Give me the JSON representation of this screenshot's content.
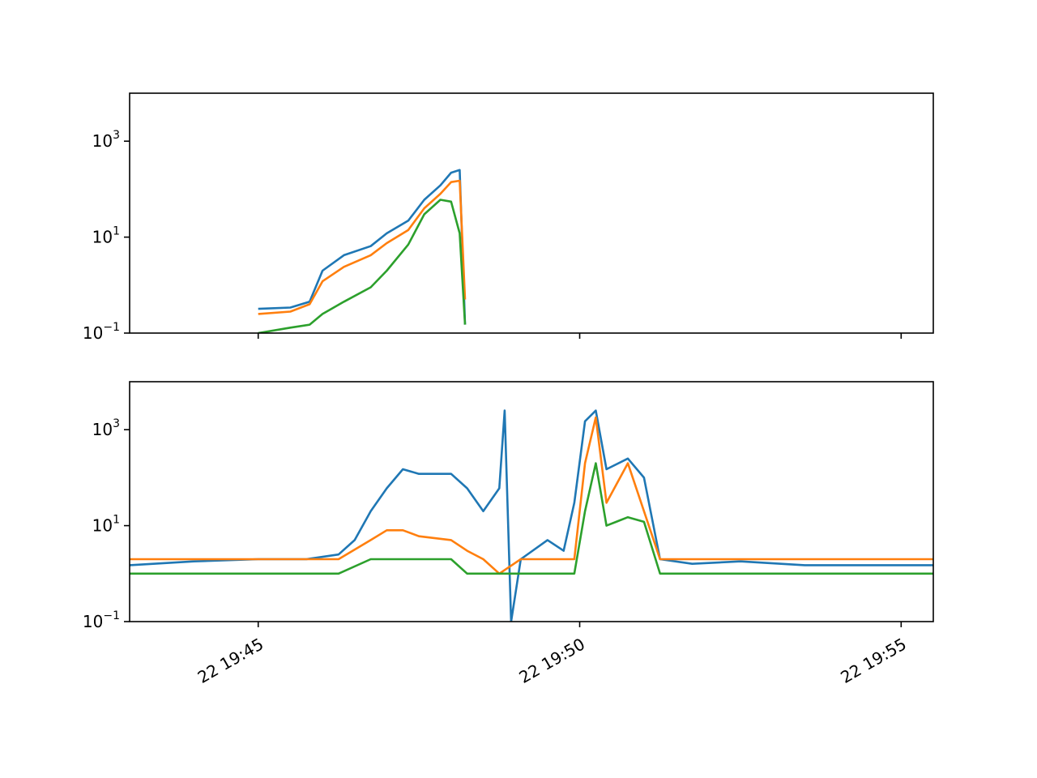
{
  "chart_data": [
    {
      "type": "line",
      "panel": "top",
      "yscale": "log",
      "ylim": [
        0.1,
        10000
      ],
      "xlim": [
        "22 19:43",
        "22 19:55:30"
      ],
      "y_tick_labels": [
        {
          "value": 1000,
          "base": "10",
          "exp": "3"
        },
        {
          "value": 10,
          "base": "10",
          "exp": "1"
        },
        {
          "value": 0.1,
          "base": "10",
          "exp": "−1"
        }
      ],
      "x_tick_labels": [],
      "series": [
        {
          "color": "#1f77b4",
          "points": [
            [
              "19:45:00",
              0.32
            ],
            [
              "19:45:30",
              0.34
            ],
            [
              "19:45:48",
              0.45
            ],
            [
              "19:46:00",
              2.0
            ],
            [
              "19:46:20",
              4.2
            ],
            [
              "19:46:45",
              6.5
            ],
            [
              "19:47:00",
              12
            ],
            [
              "19:47:20",
              22
            ],
            [
              "19:47:35",
              60
            ],
            [
              "19:47:50",
              120
            ],
            [
              "19:48:00",
              220
            ],
            [
              "19:48:08",
              250
            ],
            [
              "19:48:13",
              0.15
            ]
          ]
        },
        {
          "color": "#ff7f0e",
          "points": [
            [
              "19:45:00",
              0.25
            ],
            [
              "19:45:30",
              0.28
            ],
            [
              "19:45:48",
              0.4
            ],
            [
              "19:46:00",
              1.2
            ],
            [
              "19:46:20",
              2.4
            ],
            [
              "19:46:45",
              4.2
            ],
            [
              "19:47:00",
              7.5
            ],
            [
              "19:47:20",
              14
            ],
            [
              "19:47:35",
              40
            ],
            [
              "19:47:50",
              80
            ],
            [
              "19:48:00",
              140
            ],
            [
              "19:48:08",
              150
            ],
            [
              "19:48:13",
              0.5
            ]
          ]
        },
        {
          "color": "#2ca02c",
          "points": [
            [
              "19:45:00",
              0.1
            ],
            [
              "19:45:30",
              0.13
            ],
            [
              "19:45:48",
              0.15
            ],
            [
              "19:46:00",
              0.25
            ],
            [
              "19:46:20",
              0.45
            ],
            [
              "19:46:45",
              0.9
            ],
            [
              "19:47:00",
              2.0
            ],
            [
              "19:47:20",
              7
            ],
            [
              "19:47:35",
              30
            ],
            [
              "19:47:50",
              60
            ],
            [
              "19:48:00",
              55
            ],
            [
              "19:48:08",
              12
            ],
            [
              "19:48:13",
              0.15
            ]
          ]
        }
      ]
    },
    {
      "type": "line",
      "panel": "bottom",
      "yscale": "log",
      "ylim": [
        0.1,
        10000
      ],
      "xlim": [
        "22 19:43",
        "22 19:55:30"
      ],
      "y_tick_labels": [
        {
          "value": 1000,
          "base": "10",
          "exp": "3"
        },
        {
          "value": 10,
          "base": "10",
          "exp": "1"
        },
        {
          "value": 0.1,
          "base": "10",
          "exp": "−1"
        }
      ],
      "x_tick_labels": [
        "22 19:45",
        "22 19:50",
        "22 19:55"
      ],
      "series": [
        {
          "color": "#1f77b4",
          "points": [
            [
              "19:43:00",
              1.5
            ],
            [
              "19:44:00",
              1.8
            ],
            [
              "19:45:00",
              2.0
            ],
            [
              "19:45:45",
              2.0
            ],
            [
              "19:46:15",
              2.5
            ],
            [
              "19:46:30",
              5
            ],
            [
              "19:46:45",
              20
            ],
            [
              "19:47:00",
              60
            ],
            [
              "19:47:15",
              150
            ],
            [
              "19:47:30",
              120
            ],
            [
              "19:48:00",
              120
            ],
            [
              "19:48:15",
              60
            ],
            [
              "19:48:30",
              20
            ],
            [
              "19:48:45",
              60
            ],
            [
              "19:48:50",
              2500
            ],
            [
              "19:48:56",
              0.1
            ],
            [
              "19:49:05",
              2
            ],
            [
              "19:49:30",
              5
            ],
            [
              "19:49:45",
              3
            ],
            [
              "19:49:55",
              30
            ],
            [
              "19:50:05",
              1500
            ],
            [
              "19:50:15",
              2500
            ],
            [
              "19:50:25",
              150
            ],
            [
              "19:50:45",
              250
            ],
            [
              "19:51:00",
              100
            ],
            [
              "19:51:15",
              2
            ],
            [
              "19:51:45",
              1.6
            ],
            [
              "19:52:30",
              1.8
            ],
            [
              "19:53:30",
              1.5
            ],
            [
              "19:54:30",
              1.5
            ],
            [
              "19:55:30",
              1.5
            ]
          ]
        },
        {
          "color": "#ff7f0e",
          "points": [
            [
              "19:43:00",
              2.0
            ],
            [
              "19:44:00",
              2.0
            ],
            [
              "19:45:00",
              2.0
            ],
            [
              "19:45:45",
              2.0
            ],
            [
              "19:46:15",
              2.0
            ],
            [
              "19:46:45",
              5
            ],
            [
              "19:47:00",
              8
            ],
            [
              "19:47:15",
              8
            ],
            [
              "19:47:30",
              6
            ],
            [
              "19:48:00",
              5
            ],
            [
              "19:48:15",
              3
            ],
            [
              "19:48:30",
              2
            ],
            [
              "19:48:45",
              1
            ],
            [
              "19:49:05",
              2
            ],
            [
              "19:49:30",
              2
            ],
            [
              "19:49:55",
              2
            ],
            [
              "19:50:05",
              200
            ],
            [
              "19:50:15",
              1800
            ],
            [
              "19:50:25",
              30
            ],
            [
              "19:50:45",
              200
            ],
            [
              "19:51:00",
              20
            ],
            [
              "19:51:15",
              2
            ],
            [
              "19:51:45",
              2
            ],
            [
              "19:52:30",
              2
            ],
            [
              "19:53:30",
              2
            ],
            [
              "19:54:30",
              2
            ],
            [
              "19:55:30",
              2
            ]
          ]
        },
        {
          "color": "#2ca02c",
          "points": [
            [
              "19:43:00",
              1.0
            ],
            [
              "19:44:00",
              1.0
            ],
            [
              "19:45:00",
              1.0
            ],
            [
              "19:45:45",
              1.0
            ],
            [
              "19:46:15",
              1.0
            ],
            [
              "19:46:45",
              2
            ],
            [
              "19:47:00",
              2
            ],
            [
              "19:47:15",
              2
            ],
            [
              "19:47:30",
              2
            ],
            [
              "19:48:00",
              2
            ],
            [
              "19:48:15",
              1
            ],
            [
              "19:48:30",
              1
            ],
            [
              "19:48:45",
              1
            ],
            [
              "19:49:05",
              1
            ],
            [
              "19:49:30",
              1
            ],
            [
              "19:49:55",
              1
            ],
            [
              "19:50:05",
              20
            ],
            [
              "19:50:15",
              200
            ],
            [
              "19:50:25",
              10
            ],
            [
              "19:50:45",
              15
            ],
            [
              "19:51:00",
              12
            ],
            [
              "19:51:15",
              1
            ],
            [
              "19:51:45",
              1
            ],
            [
              "19:52:30",
              1
            ],
            [
              "19:53:30",
              1
            ],
            [
              "19:54:30",
              1
            ],
            [
              "19:55:30",
              1
            ]
          ]
        }
      ]
    }
  ]
}
